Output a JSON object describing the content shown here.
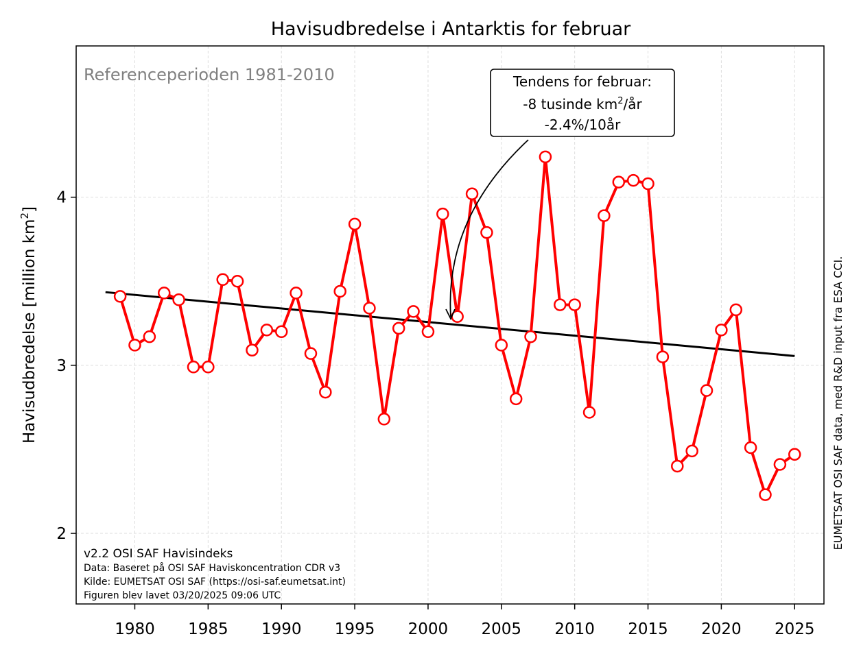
{
  "chart_data": {
    "type": "line",
    "title": "Havisudbredelse i Antarktis for februar",
    "ylabel": "Havisudbredelse [million km²]",
    "ylabel_main": "Havisudbredelse [million km",
    "ylabel_sup": "2",
    "ylabel_tail": "]",
    "xlabel": "",
    "xlim": [
      1976,
      2027
    ],
    "ylim": [
      1.58,
      4.9
    ],
    "x_ticks": [
      1980,
      1985,
      1990,
      1995,
      2000,
      2005,
      2010,
      2015,
      2020,
      2025
    ],
    "y_ticks": [
      2,
      3,
      4
    ],
    "grid": true,
    "series": [
      {
        "type": "line",
        "color": "#ff0000",
        "marker": "open-circle",
        "x": [
          1979,
          1980,
          1981,
          1982,
          1983,
          1984,
          1985,
          1986,
          1987,
          1988,
          1989,
          1990,
          1991,
          1992,
          1993,
          1994,
          1995,
          1996,
          1997,
          1998,
          1999,
          2000,
          2001,
          2002,
          2003,
          2004,
          2005,
          2006,
          2007,
          2008,
          2009,
          2010,
          2011,
          2012,
          2013,
          2014,
          2015,
          2016,
          2017,
          2018,
          2019,
          2020,
          2021,
          2022,
          2023,
          2024,
          2025
        ],
        "y": [
          3.41,
          3.12,
          3.17,
          3.43,
          3.39,
          2.99,
          2.99,
          3.51,
          3.5,
          3.09,
          3.21,
          3.2,
          3.43,
          3.07,
          2.84,
          3.44,
          3.84,
          3.34,
          2.68,
          3.22,
          3.32,
          3.2,
          3.9,
          3.29,
          4.02,
          3.79,
          3.12,
          2.8,
          3.17,
          4.24,
          3.36,
          3.36,
          2.72,
          3.89,
          4.09,
          4.1,
          4.08,
          3.05,
          2.4,
          2.49,
          2.85,
          3.21,
          3.33,
          2.51,
          2.23,
          2.41,
          2.47
        ]
      },
      {
        "type": "trend",
        "color": "#000000",
        "x": [
          1978,
          2025
        ],
        "y": [
          3.435,
          3.055
        ]
      }
    ],
    "annotations": {
      "reference": "Referenceperioden 1981-2010",
      "trend_box": {
        "line1": "Tendens for februar:",
        "line2_main": "-8 tusinde km",
        "line2_sup": "2",
        "line2_tail": "/år",
        "line3": "-2.4%/10år",
        "points_to_year": 2002
      },
      "credits": {
        "line1": "v2.2 OSI SAF Havisindeks",
        "line2": "Data: Baseret på OSI SAF Haviskoncentration CDR v3",
        "line3": "Kilde: EUMETSAT OSI SAF (https://osi-saf.eumetsat.int)",
        "line4": "Figuren blev lavet 03/20/2025 09:06 UTC"
      },
      "right_label": "EUMETSAT OSI SAF data, med R&D input fra ESA CCI."
    }
  }
}
